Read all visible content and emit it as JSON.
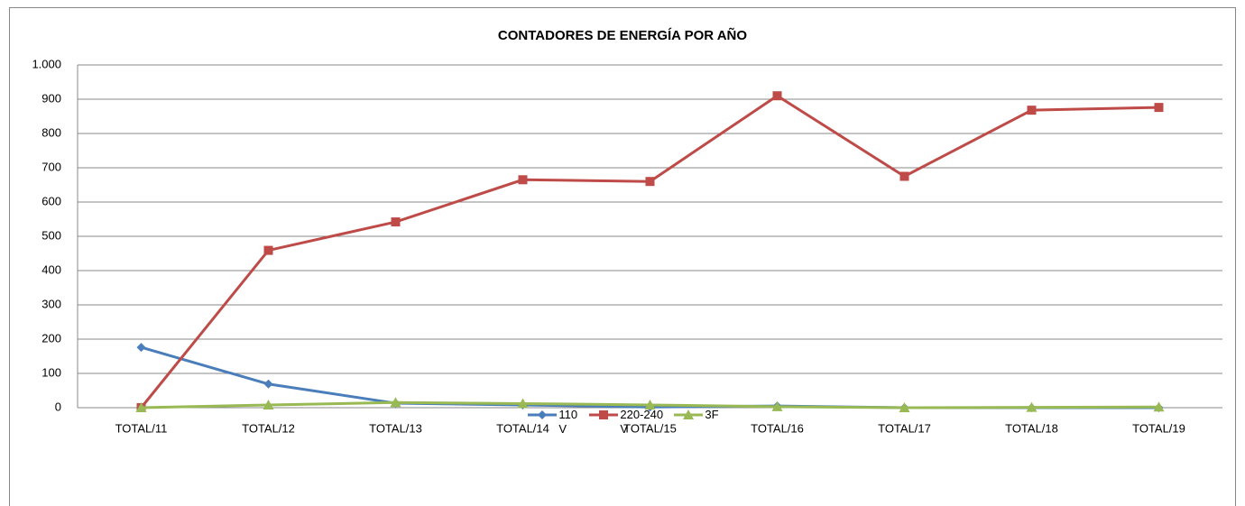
{
  "chart_data": {
    "type": "line",
    "title": "CONTADORES DE ENERGÍA POR AÑO",
    "categories": [
      "TOTAL/11",
      "TOTAL/12",
      "TOTAL/13",
      "TOTAL/14",
      "TOTAL/15",
      "TOTAL/16",
      "TOTAL/17",
      "TOTAL/18",
      "TOTAL/19"
    ],
    "series": [
      {
        "name": "110 V",
        "color": "#4a7ebb",
        "marker": "diamond",
        "values": [
          176,
          69,
          13,
          8,
          2,
          5,
          0,
          0,
          0
        ]
      },
      {
        "name": "220-240 V",
        "color": "#be4b48",
        "marker": "square",
        "values": [
          0,
          459,
          542,
          665,
          660,
          910,
          675,
          868,
          876
        ]
      },
      {
        "name": "3F",
        "color": "#98b954",
        "marker": "triangle",
        "values": [
          0,
          8,
          15,
          12,
          8,
          3,
          0,
          1,
          2
        ]
      }
    ],
    "ylim": [
      0,
      1000
    ],
    "yticks": [
      0,
      100,
      200,
      300,
      400,
      500,
      600,
      700,
      800,
      900,
      {
        "value": 1000,
        "label": "1.000"
      }
    ],
    "grid": true,
    "legend": "bottom"
  }
}
